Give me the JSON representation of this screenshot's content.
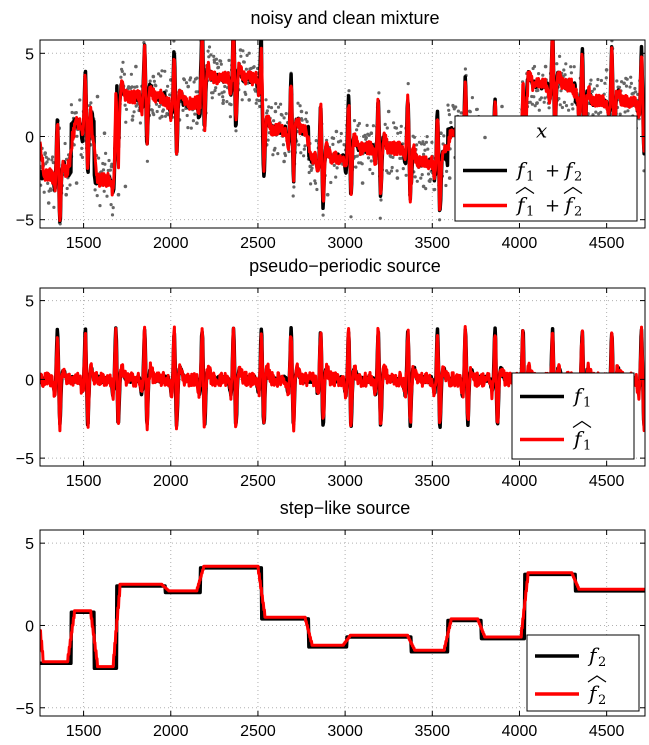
{
  "colors": {
    "clean": "#000000",
    "estimate": "#ff0000",
    "noisy_points": "#666666",
    "grid": "#b0b0b0"
  },
  "chart_data": [
    {
      "type": "line",
      "title": "noisy and clean mixture",
      "xlim": [
        1250,
        4720
      ],
      "ylim": [
        -5.5,
        5.8
      ],
      "xticks": [
        1500,
        2000,
        2500,
        3000,
        3500,
        4000,
        4500
      ],
      "yticks": [
        -5,
        0,
        5
      ],
      "grid": true,
      "legend_position": "bottom-right",
      "series": [
        {
          "name": "x",
          "style": "points",
          "color": "#666666",
          "x": [
            1250,
            1280,
            1300,
            1330,
            1360,
            1400,
            1430,
            1460,
            1500,
            1540,
            1580,
            1620,
            1660,
            1700,
            1740,
            1780,
            1800,
            1850,
            1900,
            1950,
            2000,
            2050,
            2100,
            2150,
            2200,
            2250,
            2300,
            2350,
            2400,
            2450,
            2500,
            2550,
            2600,
            2650,
            2700,
            2750,
            2800,
            2850,
            2900,
            2950,
            3000,
            3050,
            3100,
            3150,
            3200,
            3250,
            3300,
            3350,
            3400,
            3450,
            3500,
            3550,
            3600,
            3650,
            3700,
            3750,
            3800,
            3850,
            3900,
            3950,
            4000,
            4050,
            4100,
            4150,
            4200,
            4250,
            4300,
            4350,
            4400,
            4450,
            4500,
            4550,
            4600,
            4650,
            4700
          ],
          "y": [
            -2.5,
            -1.0,
            -4.0,
            -2.6,
            0.5,
            -3.5,
            -1.2,
            -2.8,
            1.5,
            -0.5,
            2.4,
            0.2,
            -1.8,
            -3.5,
            -3.0,
            1.0,
            4.2,
            2.6,
            3.6,
            1.2,
            3.4,
            1.0,
            3.0,
            0.8,
            2.5,
            4.6,
            2.0,
            4.0,
            5.2,
            2.2,
            3.8,
            -0.5,
            1.5,
            -1.5,
            0.5,
            1.5,
            -1.8,
            -0.4,
            -3.5,
            0.3,
            -1.5,
            -0.2,
            -2.8,
            0.2,
            -1.0,
            1.5,
            -2.5,
            0.5,
            -0.8,
            -3.0,
            -1.2,
            0.2,
            -2.5,
            -0.5,
            0.8,
            -3.8,
            0.5,
            -1.0,
            1.8,
            -2.0,
            0.5,
            3.8,
            2.0,
            4.2,
            1.8,
            3.6,
            1.0,
            3.5,
            2.0,
            0.5,
            4.0,
            1.6,
            3.2,
            0.8,
            2.4
          ]
        },
        {
          "name": "f1 + f2",
          "legend_label": {
            "main": [
              "f",
              "+",
              "f"
            ],
            "subs": [
              "1",
              "2"
            ]
          },
          "style": "line",
          "color": "#000000"
        },
        {
          "name": "f1hat + f2hat",
          "legend_label": {
            "main": [
              "f",
              "+",
              "f"
            ],
            "subs": [
              "1",
              "2"
            ],
            "hat": true
          },
          "style": "line",
          "color": "#ff0000"
        }
      ]
    },
    {
      "type": "line",
      "title": "pseudo−periodic source",
      "xlim": [
        1250,
        4720
      ],
      "ylim": [
        -5.5,
        5.8
      ],
      "xticks": [
        1500,
        2000,
        2500,
        3000,
        3500,
        4000,
        4500
      ],
      "yticks": [
        -5,
        0,
        5
      ],
      "grid": true,
      "legend_position": "bottom-right",
      "pulse_peak": 3.2,
      "pulse_trough": -3.1,
      "pulse_times": [
        1350,
        1510,
        1685,
        1850,
        2020,
        2180,
        2360,
        2520,
        2690,
        2860,
        3020,
        3190,
        3360,
        3530,
        3690,
        3860,
        4020,
        4190,
        4360,
        4530,
        4700
      ],
      "series": [
        {
          "name": "f1",
          "legend_label": {
            "main": [
              "f"
            ],
            "subs": [
              "1"
            ]
          },
          "style": "line",
          "color": "#000000"
        },
        {
          "name": "f1hat",
          "legend_label": {
            "main": [
              "f"
            ],
            "subs": [
              "1"
            ],
            "hat": true
          },
          "style": "line",
          "color": "#ff0000"
        }
      ]
    },
    {
      "type": "line",
      "title": "step−like source",
      "xlim": [
        1250,
        4720
      ],
      "ylim": [
        -5.5,
        5.8
      ],
      "xticks": [
        1500,
        2000,
        2500,
        3000,
        3500,
        4000,
        4500
      ],
      "yticks": [
        -5,
        0,
        5
      ],
      "grid": true,
      "legend_position": "bottom-right",
      "steps": [
        {
          "x0": 1250,
          "x1": 1430,
          "y": -2.3
        },
        {
          "x0": 1430,
          "x1": 1560,
          "y": 0.8
        },
        {
          "x0": 1560,
          "x1": 1690,
          "y": -2.6
        },
        {
          "x0": 1690,
          "x1": 1970,
          "y": 2.4
        },
        {
          "x0": 1970,
          "x1": 2170,
          "y": 2.0
        },
        {
          "x0": 2170,
          "x1": 2520,
          "y": 3.5
        },
        {
          "x0": 2520,
          "x1": 2790,
          "y": 0.4
        },
        {
          "x0": 2790,
          "x1": 3010,
          "y": -1.3
        },
        {
          "x0": 3010,
          "x1": 3380,
          "y": -0.7
        },
        {
          "x0": 3380,
          "x1": 3590,
          "y": -1.6
        },
        {
          "x0": 3590,
          "x1": 3780,
          "y": 0.3
        },
        {
          "x0": 3780,
          "x1": 4030,
          "y": -0.8
        },
        {
          "x0": 4030,
          "x1": 4320,
          "y": 3.1
        },
        {
          "x0": 4320,
          "x1": 4720,
          "y": 2.1
        }
      ],
      "series": [
        {
          "name": "f2",
          "legend_label": {
            "main": [
              "f"
            ],
            "subs": [
              "2"
            ]
          },
          "style": "line",
          "color": "#000000"
        },
        {
          "name": "f2hat",
          "legend_label": {
            "main": [
              "f"
            ],
            "subs": [
              "2"
            ],
            "hat": true
          },
          "style": "line",
          "color": "#ff0000"
        }
      ]
    }
  ]
}
